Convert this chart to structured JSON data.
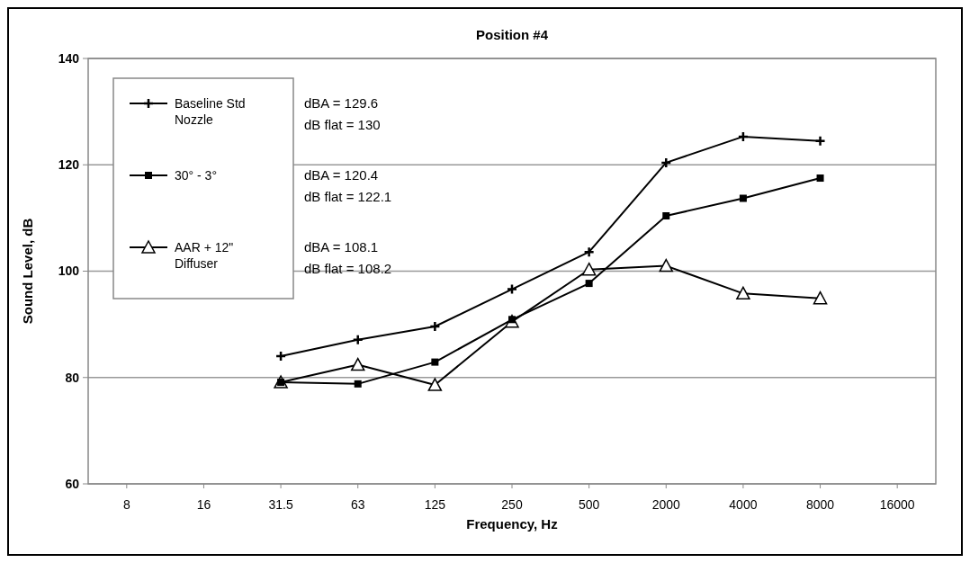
{
  "chart_data": {
    "type": "line",
    "title": "Position #4",
    "xlabel": "Frequency, Hz",
    "ylabel": "Sound Level, dB",
    "categories": [
      "8",
      "16",
      "31.5",
      "63",
      "125",
      "250",
      "500",
      "2000",
      "4000",
      "8000",
      "16000"
    ],
    "series": [
      {
        "name": "Baseline Std Nozzle",
        "color": "#000000",
        "marker": "cross",
        "values": [
          null,
          null,
          84,
          87.1,
          89.6,
          96.6,
          103.6,
          120.4,
          125.3,
          124.5,
          null
        ]
      },
      {
        "name": "30° - 3°",
        "color": "#000000",
        "marker": "square",
        "values": [
          null,
          null,
          79.1,
          78.8,
          82.9,
          90.9,
          97.7,
          110.4,
          113.7,
          117.5,
          null
        ]
      },
      {
        "name": "AAR + 12\" Diffuser",
        "color": "#000000",
        "marker": "triangle",
        "values": [
          null,
          null,
          79.1,
          82.4,
          78.6,
          90.5,
          100.3,
          101,
          95.8,
          94.9,
          null
        ]
      }
    ],
    "ylim": [
      60,
      140
    ],
    "yticks": [
      60,
      80,
      100,
      120,
      140
    ],
    "grid": "y",
    "legend": "top left",
    "annotations": [
      "dBA = 129.6",
      "dB flat = 130",
      "dBA = 120.4",
      "dB flat = 122.1",
      "dBA = 108.1",
      "dB flat = 108.2"
    ]
  }
}
